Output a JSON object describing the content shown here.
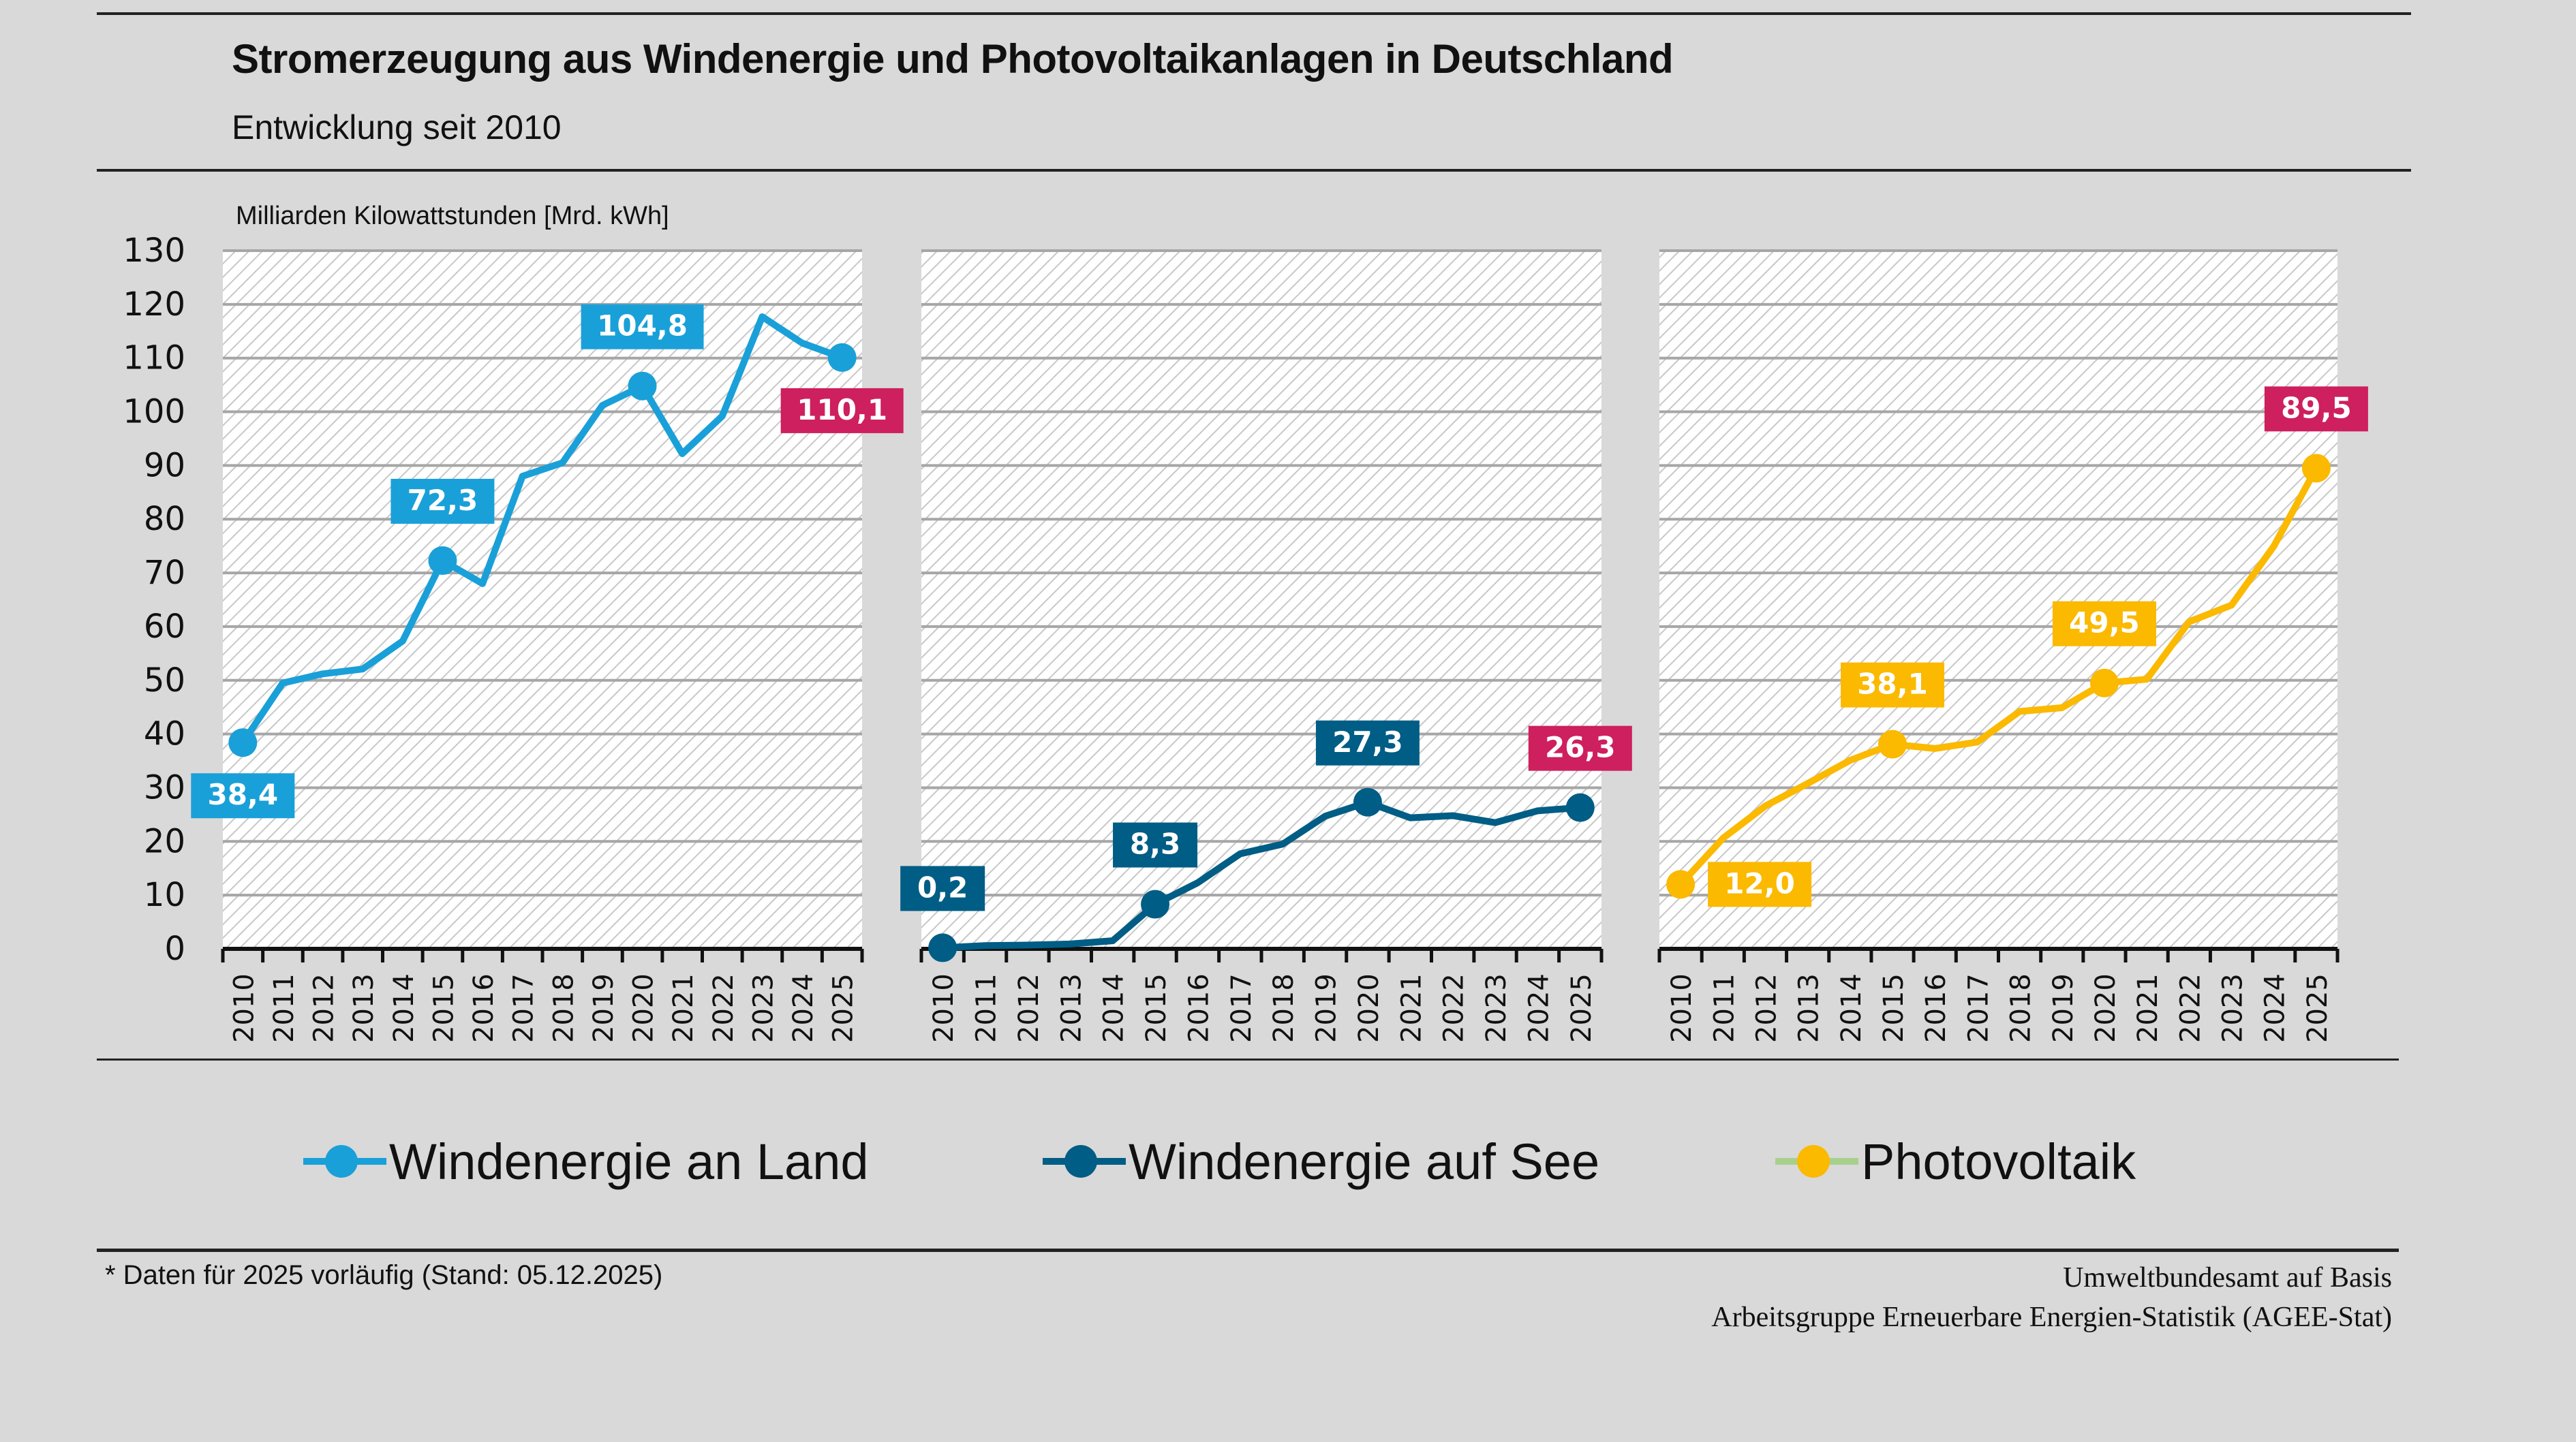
{
  "header": {
    "title": "Stromerzeugung aus Windenergie und Photovoltaikanlagen in Deutschland",
    "subtitle": "Entwicklung seit 2010"
  },
  "footer": {
    "footnote": "* Daten für 2025 vorläufig (Stand: 05.12.2025)",
    "source_line1": "Umweltbundesamt auf Basis",
    "source_line2": "Arbeitsgruppe Erneuerbare Energien-Statistik (AGEE-Stat)"
  },
  "colors": {
    "onshore": "#1aa0d8",
    "offshore": "#005d85",
    "pv": "#fbb900",
    "highlight": "#ce1f5e",
    "legend_pv_line": "#a8d08d"
  },
  "chart_data": {
    "type": "line",
    "title": "Stromerzeugung aus Windenergie und Photovoltaikanlagen in Deutschland",
    "subtitle": "Entwicklung seit 2010",
    "ylabel": "Milliarden Kilowattstunden [Mrd. kWh]",
    "xlabel": "",
    "ylim": [
      0,
      130
    ],
    "yticks": [
      0,
      10,
      20,
      30,
      40,
      50,
      60,
      70,
      80,
      90,
      100,
      110,
      120,
      130
    ],
    "grid": true,
    "legend_position": "bottom",
    "x": [
      "2010",
      "2011",
      "2012",
      "2013",
      "2014",
      "2015",
      "2016",
      "2017",
      "2018",
      "2019",
      "2020",
      "2021",
      "2022",
      "2023",
      "2024",
      "2025"
    ],
    "series": [
      {
        "name": "Windenergie an Land",
        "color_key": "onshore",
        "values": [
          38.4,
          49.5,
          51.2,
          52.1,
          57.3,
          72.3,
          68.0,
          88.0,
          90.5,
          101.2,
          104.8,
          92.2,
          99.2,
          117.7,
          112.8,
          110.1
        ],
        "annotations": [
          {
            "index": 0,
            "label": "38,4",
            "position": "below",
            "highlight": false
          },
          {
            "index": 5,
            "label": "72,3",
            "position": "above",
            "highlight": false
          },
          {
            "index": 10,
            "label": "104,8",
            "position": "above",
            "highlight": false
          },
          {
            "index": 15,
            "label": "110,1",
            "position": "below",
            "highlight": true
          }
        ]
      },
      {
        "name": "Windenergie auf See",
        "color_key": "offshore",
        "values": [
          0.2,
          0.6,
          0.7,
          0.9,
          1.5,
          8.3,
          12.3,
          17.7,
          19.5,
          24.7,
          27.3,
          24.4,
          24.8,
          23.5,
          25.7,
          26.3
        ],
        "annotations": [
          {
            "index": 0,
            "label": "0,2",
            "position": "above",
            "highlight": false
          },
          {
            "index": 5,
            "label": "8,3",
            "position": "above",
            "highlight": false
          },
          {
            "index": 10,
            "label": "27,3",
            "position": "above",
            "highlight": false
          },
          {
            "index": 15,
            "label": "26,3",
            "position": "above",
            "highlight": true
          }
        ]
      },
      {
        "name": "Photovoltaik",
        "color_key": "pv",
        "values": [
          12.0,
          20.6,
          26.6,
          30.8,
          35.1,
          38.1,
          37.3,
          38.5,
          44.2,
          44.9,
          49.5,
          50.2,
          60.9,
          64.0,
          75.0,
          89.5
        ],
        "annotations": [
          {
            "index": 0,
            "label": "12,0",
            "position": "right",
            "highlight": false
          },
          {
            "index": 5,
            "label": "38,1",
            "position": "above",
            "highlight": false
          },
          {
            "index": 10,
            "label": "49,5",
            "position": "above",
            "highlight": false
          },
          {
            "index": 15,
            "label": "89,5",
            "position": "above",
            "highlight": true
          }
        ]
      }
    ]
  }
}
